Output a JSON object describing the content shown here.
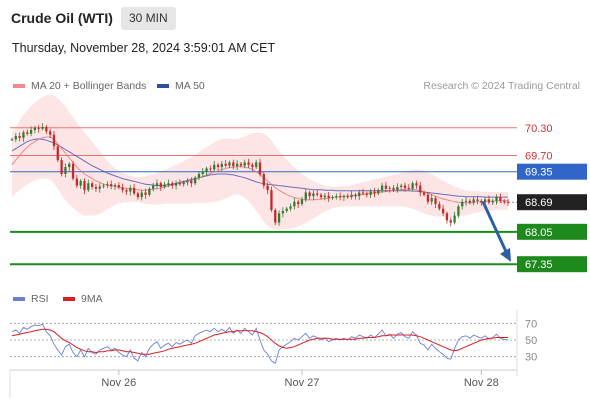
{
  "header": {
    "instrument": "Crude Oil (WTI)",
    "timeframe": "30 MIN",
    "datetime": "Thursday, November 28, 2024 3:59:01 AM CET"
  },
  "legend": {
    "ma20_label": "MA 20 + Bollinger Bands",
    "ma50_label": "MA 50",
    "credit": "Research © 2024 Trading Central"
  },
  "rsi_legend": {
    "rsi_label": "RSI",
    "ma_label": "9MA"
  },
  "colors": {
    "candle_up": "#2e7d32",
    "candle_down": "#c62828",
    "ma20": "#e57373",
    "ma50": "#3f51b5",
    "band_fill": "#fde0e0",
    "support": "#1e8a1e",
    "resistance": "#e57373",
    "pivot": "#2f66c8",
    "current": "#222222",
    "arrow": "#2a5fa0"
  },
  "chart_data": [
    {
      "type": "candlestick",
      "title": "Crude Oil (WTI)",
      "timeframe": "30 MIN",
      "y_range": [
        66.9,
        70.9
      ],
      "x_labels": [
        {
          "label": "Nov 26",
          "index": 28
        },
        {
          "label": "Nov 27",
          "index": 76
        },
        {
          "label": "Nov 28",
          "index": 123
        }
      ],
      "close": [
        70.05,
        70.12,
        70.08,
        70.2,
        70.17,
        70.25,
        70.3,
        70.28,
        70.32,
        70.22,
        70.15,
        69.9,
        69.6,
        69.3,
        69.45,
        69.52,
        69.2,
        69.05,
        69.15,
        68.95,
        69.1,
        69.02,
        68.98,
        69.03,
        69.05,
        69.08,
        69.04,
        69.06,
        69.01,
        68.95,
        68.92,
        69.0,
        68.88,
        68.8,
        68.9,
        68.85,
        68.98,
        69.05,
        69.1,
        69.02,
        69.07,
        69.1,
        69.05,
        69.1,
        69.08,
        69.12,
        69.15,
        69.1,
        69.22,
        69.3,
        69.35,
        69.42,
        69.4,
        69.5,
        69.45,
        69.52,
        69.48,
        69.55,
        69.47,
        69.52,
        69.48,
        69.55,
        69.5,
        69.45,
        69.55,
        69.3,
        69.05,
        68.95,
        68.52,
        68.25,
        68.45,
        68.5,
        68.55,
        68.6,
        68.7,
        68.65,
        68.75,
        68.9,
        68.82,
        68.88,
        68.85,
        68.8,
        68.83,
        68.78,
        68.8,
        68.82,
        68.8,
        68.82,
        68.8,
        68.85,
        68.82,
        68.9,
        68.88,
        68.85,
        68.92,
        68.88,
        68.95,
        69.05,
        68.98,
        69.0,
        68.95,
        69.02,
        69.05,
        69.0,
        68.98,
        69.1,
        69.05,
        68.9,
        68.85,
        68.7,
        68.78,
        68.65,
        68.55,
        68.45,
        68.3,
        68.25,
        68.4,
        68.6,
        68.7,
        68.72,
        68.68,
        68.75,
        68.72,
        68.7,
        68.75,
        68.7,
        68.72,
        68.8,
        68.72,
        68.7,
        68.68
      ],
      "ma20": [
        69.5,
        69.6,
        69.7,
        69.8,
        69.88,
        69.95,
        70.0,
        70.05,
        70.08,
        70.1,
        70.1,
        70.05,
        69.95,
        69.85,
        69.75,
        69.65,
        69.55,
        69.45,
        69.37,
        69.3,
        69.25,
        69.2,
        69.15,
        69.12,
        69.08,
        69.06,
        69.04,
        69.03,
        69.02,
        69.0,
        68.99,
        68.98,
        68.97,
        68.96,
        68.95,
        68.95,
        68.96,
        68.97,
        68.98,
        69.0,
        69.02,
        69.04,
        69.06,
        69.08,
        69.1,
        69.12,
        69.14,
        69.16,
        69.19,
        69.22,
        69.25,
        69.28,
        69.31,
        69.34,
        69.37,
        69.4,
        69.42,
        69.44,
        69.45,
        69.46,
        69.46,
        69.45,
        69.43,
        69.4,
        69.35,
        69.29,
        69.22,
        69.15,
        69.08,
        69.0,
        68.95,
        68.9,
        68.86,
        68.82,
        68.79,
        68.77,
        68.75,
        68.74,
        68.74,
        68.74,
        68.75,
        68.76,
        68.77,
        68.78,
        68.79,
        68.8,
        68.81,
        68.82,
        68.82,
        68.83,
        68.84,
        68.85,
        68.86,
        68.87,
        68.88,
        68.89,
        68.9,
        68.91,
        68.92,
        68.93,
        68.94,
        68.95,
        68.96,
        68.97,
        68.97,
        68.97,
        68.96,
        68.94,
        68.91,
        68.88,
        68.85,
        68.82,
        68.79,
        68.76,
        68.74,
        68.72,
        68.7,
        68.69,
        68.68,
        68.68,
        68.68,
        68.69,
        68.7,
        68.7,
        68.71,
        68.71,
        68.71,
        68.72,
        68.72,
        68.72,
        68.72
      ],
      "ma50": [
        69.8,
        69.85,
        69.9,
        69.95,
        70.0,
        70.03,
        70.05,
        70.06,
        70.05,
        70.03,
        70.0,
        69.97,
        69.93,
        69.88,
        69.83,
        69.78,
        69.73,
        69.68,
        69.63,
        69.58,
        69.53,
        69.48,
        69.44,
        69.4,
        69.36,
        69.32,
        69.29,
        69.26,
        69.23,
        69.2,
        69.18,
        69.16,
        69.14,
        69.12,
        69.1,
        69.08,
        69.07,
        69.06,
        69.05,
        69.05,
        69.06,
        69.07,
        69.08,
        69.1,
        69.12,
        69.14,
        69.16,
        69.18,
        69.2,
        69.22,
        69.24,
        69.26,
        69.28,
        69.29,
        69.3,
        69.3,
        69.3,
        69.29,
        69.28,
        69.26,
        69.24,
        69.22,
        69.19,
        69.16,
        69.13,
        69.11,
        69.09,
        69.08,
        69.07,
        69.06,
        69.05,
        69.04,
        69.03,
        69.02,
        69.01,
        69.0,
        68.99,
        68.98,
        68.97,
        68.96,
        68.96,
        68.96,
        68.95,
        68.95,
        68.95,
        68.94,
        68.94,
        68.94,
        68.94,
        68.94,
        68.94,
        68.94,
        68.94,
        68.94,
        68.94,
        68.94,
        68.94,
        68.94,
        68.94,
        68.94,
        68.94,
        68.94,
        68.94,
        68.94,
        68.94,
        68.93,
        68.93,
        68.92,
        68.91,
        68.9,
        68.89,
        68.88,
        68.87,
        68.86,
        68.85,
        68.84,
        68.83,
        68.82,
        68.82,
        68.81,
        68.81,
        68.81,
        68.81,
        68.81,
        68.8,
        68.8,
        68.8,
        68.8,
        68.8,
        68.8,
        68.8
      ],
      "bollinger_width": [
        0.7,
        0.72,
        0.75,
        0.78,
        0.8,
        0.82,
        0.84,
        0.86,
        0.88,
        0.9,
        0.92,
        0.95,
        0.98,
        1.0,
        1.02,
        1.0,
        0.98,
        0.96,
        0.93,
        0.9,
        0.85,
        0.8,
        0.74,
        0.68,
        0.6,
        0.52,
        0.46,
        0.4,
        0.35,
        0.32,
        0.3,
        0.28,
        0.27,
        0.27,
        0.28,
        0.3,
        0.32,
        0.33,
        0.34,
        0.35,
        0.36,
        0.38,
        0.4,
        0.42,
        0.44,
        0.46,
        0.48,
        0.5,
        0.52,
        0.55,
        0.58,
        0.6,
        0.62,
        0.64,
        0.66,
        0.66,
        0.65,
        0.63,
        0.6,
        0.6,
        0.62,
        0.66,
        0.72,
        0.78,
        0.85,
        0.9,
        0.95,
        0.97,
        0.95,
        0.9,
        0.85,
        0.8,
        0.75,
        0.7,
        0.65,
        0.6,
        0.55,
        0.5,
        0.45,
        0.4,
        0.36,
        0.32,
        0.28,
        0.25,
        0.23,
        0.22,
        0.22,
        0.22,
        0.22,
        0.23,
        0.24,
        0.25,
        0.26,
        0.27,
        0.28,
        0.29,
        0.3,
        0.31,
        0.32,
        0.33,
        0.34,
        0.35,
        0.36,
        0.38,
        0.4,
        0.42,
        0.44,
        0.45,
        0.46,
        0.46,
        0.45,
        0.43,
        0.41,
        0.39,
        0.37,
        0.35,
        0.33,
        0.31,
        0.29,
        0.27,
        0.25,
        0.24,
        0.23,
        0.22,
        0.21,
        0.2,
        0.2,
        0.2,
        0.19,
        0.19,
        0.19
      ],
      "horizontal_levels": [
        {
          "value": 70.3,
          "label": "70.30",
          "kind": "resistance"
        },
        {
          "value": 69.7,
          "label": "69.70",
          "kind": "resistance"
        },
        {
          "value": 69.35,
          "label": "69.35",
          "kind": "pivot"
        },
        {
          "value": 68.69,
          "label": "68.69",
          "kind": "current"
        },
        {
          "value": 68.05,
          "label": "68.05",
          "kind": "support"
        },
        {
          "value": 67.35,
          "label": "67.35",
          "kind": "support"
        }
      ],
      "projection": {
        "from_value": 68.7,
        "to_value": 67.4,
        "direction": "down"
      },
      "legend": [
        "MA 20 + Bollinger Bands",
        "MA 50"
      ]
    },
    {
      "type": "line",
      "title": "RSI",
      "y_range": [
        20,
        80
      ],
      "y_ticks": [
        70,
        50,
        30
      ],
      "series": [
        {
          "name": "RSI",
          "values": [
            60,
            62,
            58,
            65,
            63,
            66,
            68,
            67,
            69,
            60,
            55,
            45,
            38,
            32,
            42,
            45,
            35,
            30,
            38,
            30,
            40,
            35,
            33,
            38,
            40,
            42,
            38,
            40,
            35,
            32,
            30,
            38,
            28,
            25,
            35,
            30,
            40,
            45,
            48,
            40,
            44,
            46,
            42,
            47,
            45,
            48,
            50,
            46,
            55,
            58,
            60,
            62,
            60,
            64,
            60,
            63,
            60,
            65,
            58,
            62,
            58,
            64,
            60,
            56,
            64,
            50,
            38,
            33,
            25,
            22,
            38,
            42,
            45,
            48,
            52,
            50,
            54,
            58,
            52,
            55,
            53,
            50,
            52,
            48,
            50,
            52,
            50,
            52,
            50,
            54,
            52,
            56,
            54,
            52,
            56,
            53,
            57,
            62,
            55,
            57,
            52,
            57,
            59,
            54,
            52,
            60,
            56,
            46,
            44,
            38,
            45,
            40,
            36,
            33,
            28,
            27,
            40,
            50,
            54,
            55,
            52,
            56,
            54,
            52,
            55,
            51,
            53,
            57,
            52,
            51,
            50
          ]
        },
        {
          "name": "9MA",
          "values": [
            55,
            56,
            57,
            58,
            59,
            60,
            61,
            62,
            63,
            63,
            62,
            60,
            56,
            52,
            49,
            47,
            44,
            41,
            39,
            37,
            36,
            36,
            35,
            36,
            36,
            37,
            37,
            38,
            38,
            37,
            36,
            36,
            35,
            34,
            33,
            33,
            33,
            34,
            35,
            36,
            37,
            39,
            40,
            41,
            42,
            43,
            44,
            45,
            46,
            48,
            50,
            52,
            54,
            56,
            57,
            58,
            59,
            60,
            60,
            61,
            61,
            61,
            61,
            61,
            60,
            59,
            57,
            54,
            50,
            46,
            43,
            41,
            40,
            41,
            42,
            44,
            46,
            48,
            50,
            51,
            52,
            52,
            52,
            52,
            51,
            51,
            51,
            51,
            51,
            51,
            51,
            52,
            52,
            53,
            53,
            53,
            54,
            55,
            55,
            56,
            56,
            56,
            56,
            56,
            56,
            56,
            55,
            54,
            52,
            50,
            48,
            46,
            44,
            42,
            40,
            38,
            37,
            38,
            40,
            42,
            44,
            46,
            48,
            50,
            51,
            52,
            52,
            53,
            53,
            53,
            53
          ]
        }
      ],
      "x_labels": [
        "Nov 26",
        "Nov 27",
        "Nov 28"
      ],
      "legend": [
        "RSI",
        "9MA"
      ]
    }
  ]
}
